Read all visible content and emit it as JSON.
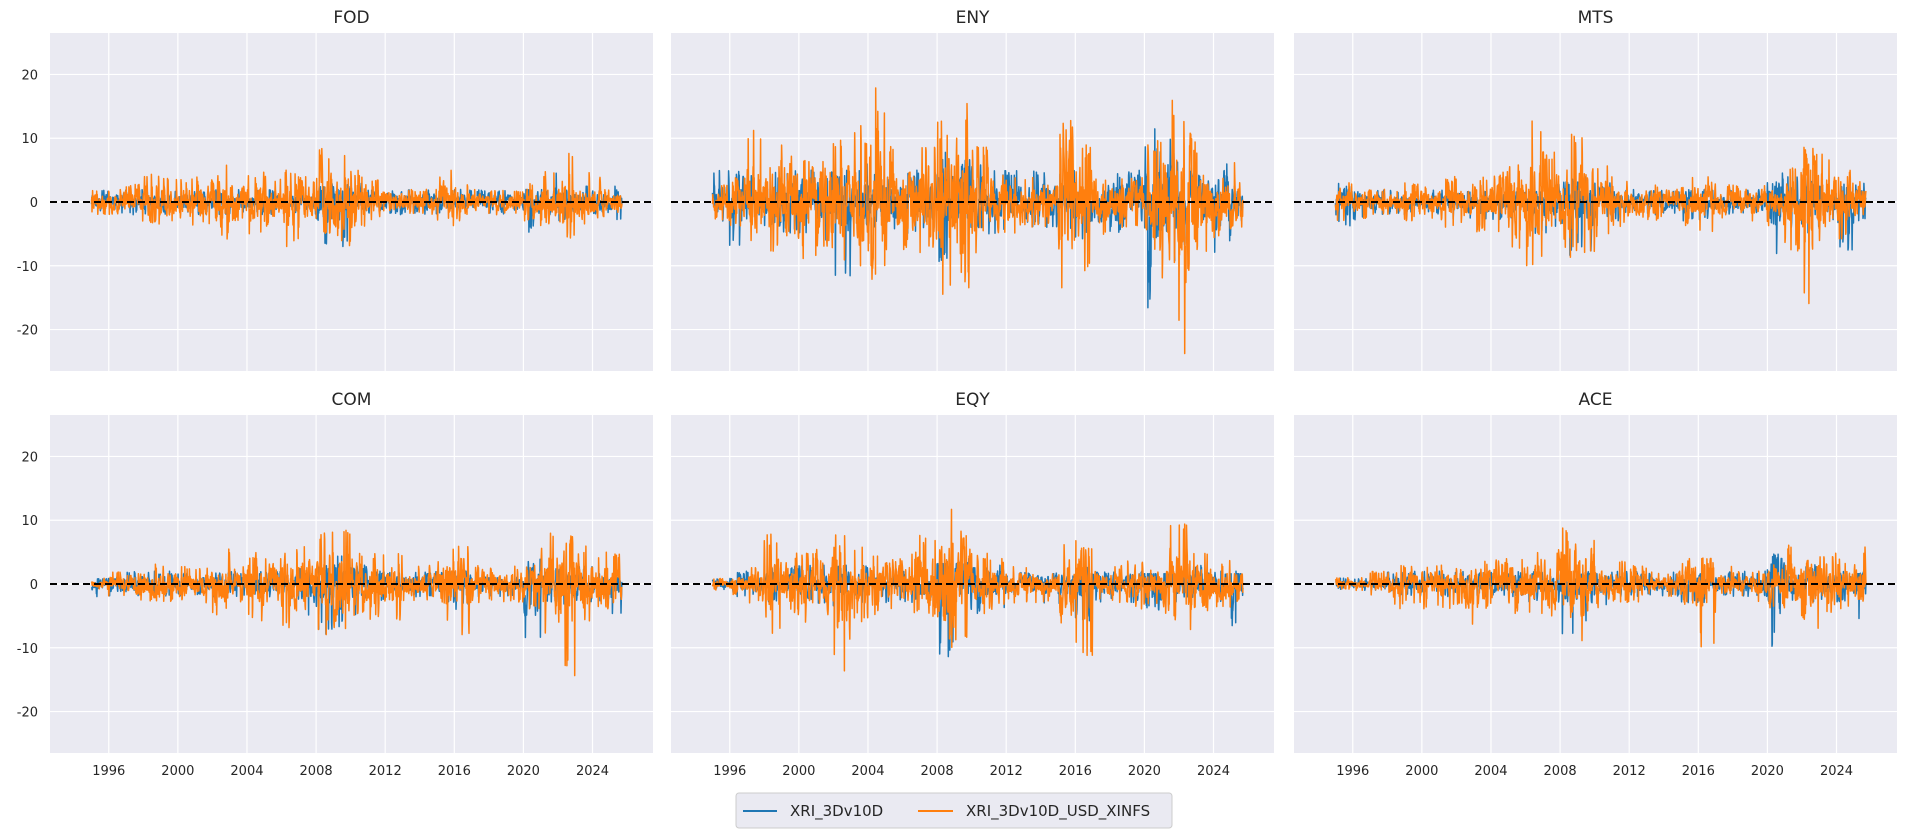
{
  "chart_data": {
    "type": "line",
    "layout": "2x3 small multiples, shared axes",
    "ylim": [
      -26.5,
      26.5
    ],
    "xlim": [
      1992.6,
      2027.5
    ],
    "yticks": [
      -20,
      -10,
      0,
      10,
      20
    ],
    "xticks": [
      1996,
      2000,
      2004,
      2008,
      2012,
      2016,
      2020,
      2024
    ],
    "grid": true,
    "background": "#eaeaf2",
    "reference_line": {
      "y": 0,
      "style": "dashed",
      "color": "#000000"
    },
    "legend": {
      "placement": "bottom-center",
      "entries": [
        "XRI_3Dv10D",
        "XRI_3Dv10D_USD_XINFS"
      ]
    },
    "series_colors": [
      "#1f77b4",
      "#ff7f0e"
    ],
    "x_years": [
      1995,
      1996,
      1997,
      1998,
      1999,
      2000,
      2001,
      2002,
      2003,
      2004,
      2005,
      2006,
      2007,
      2008,
      2009,
      2010,
      2011,
      2012,
      2013,
      2014,
      2015,
      2016,
      2017,
      2018,
      2019,
      2020,
      2021,
      2022,
      2023,
      2024,
      2025
    ],
    "note_on_values": "annual max / min of each daily series, read from the plot",
    "panels": [
      {
        "title": "FOD",
        "series": [
          {
            "name": "XRI_3Dv10D",
            "max": [
              2,
              2,
              2,
              2,
              2,
              2,
              2,
              2,
              2,
              2,
              2,
              2,
              2,
              3,
              3,
              3,
              2,
              2,
              2,
              2,
              2,
              2,
              2,
              2,
              2,
              2,
              5,
              2,
              3,
              3,
              3
            ],
            "min": [
              -2,
              -2,
              -2,
              -2,
              -2,
              -2,
              -2,
              -2,
              -2,
              -2,
              -2,
              -2,
              -2,
              -7,
              -7,
              -3,
              -2,
              -2,
              -2,
              -2,
              -2,
              -2,
              -2,
              -2,
              -2,
              -5,
              -2,
              -3,
              -2,
              -2,
              -3
            ]
          },
          {
            "name": "XRI_3Dv10D_USD_XINFS",
            "max": [
              2,
              2,
              3,
              5,
              4,
              4,
              4,
              7,
              3,
              5,
              4,
              5,
              4,
              9,
              9,
              5,
              4,
              3,
              2,
              2,
              5,
              3,
              2,
              2,
              2,
              3,
              5,
              8,
              5,
              4,
              3
            ],
            "min": [
              -2,
              -2,
              -3,
              -4,
              -3,
              -4,
              -4,
              -6,
              -3,
              -5,
              -4,
              -7,
              -4,
              -6,
              -7,
              -4,
              -3,
              -2,
              -2,
              -2,
              -4,
              -3,
              -2,
              -2,
              -2,
              -3,
              -4,
              -6,
              -4,
              -3,
              -2
            ]
          }
        ]
      },
      {
        "title": "ENY",
        "series": [
          {
            "name": "XRI_3Dv10D",
            "max": [
              5,
              5,
              5,
              5,
              5,
              5,
              5,
              5,
              6,
              5,
              5,
              5,
              5,
              8,
              7,
              6,
              5,
              5,
              5,
              5,
              5,
              5,
              5,
              5,
              5,
              12,
              10,
              6,
              5,
              7,
              6
            ],
            "min": [
              -3,
              -7,
              -3,
              -4,
              -5,
              -5,
              -7,
              -12,
              -4,
              -4,
              -5,
              -5,
              -5,
              -10,
              -8,
              -5,
              -5,
              -4,
              -4,
              -4,
              -5,
              -6,
              -4,
              -5,
              -4,
              -18,
              -10,
              -8,
              -5,
              -8,
              -4
            ]
          },
          {
            "name": "XRI_3Dv10D_USD_XINFS",
            "max": [
              3,
              4,
              12,
              7,
              9,
              8,
              11,
              10,
              12,
              18,
              10,
              10,
              10,
              13,
              16,
              9,
              6,
              5,
              4,
              3,
              13,
              9,
              4,
              4,
              4,
              10,
              16,
              14,
              9,
              8,
              7
            ],
            "min": [
              -3,
              -4,
              -8,
              -8,
              -11,
              -9,
              -13,
              -10,
              -11,
              -13,
              -8,
              -9,
              -8,
              -15,
              -14,
              -8,
              -6,
              -5,
              -4,
              -4,
              -14,
              -12,
              -6,
              -4,
              -4,
              -8,
              -12,
              -24,
              -8,
              -6,
              -5
            ]
          }
        ]
      },
      {
        "title": "MTS",
        "series": [
          {
            "name": "XRI_3Dv10D",
            "max": [
              3,
              2,
              2,
              2,
              2,
              2,
              2,
              2,
              2,
              2,
              2,
              2,
              3,
              4,
              4,
              3,
              2,
              2,
              2,
              2,
              2,
              2,
              2,
              2,
              2,
              5,
              4,
              4,
              3,
              3,
              3
            ],
            "min": [
              -4,
              -3,
              -2,
              -2,
              -2,
              -2,
              -3,
              -3,
              -3,
              -3,
              -3,
              -5,
              -5,
              -9,
              -8,
              -5,
              -3,
              -2,
              -2,
              -2,
              -3,
              -3,
              -2,
              -2,
              -2,
              -10,
              -4,
              -5,
              -3,
              -8,
              -3
            ]
          },
          {
            "name": "XRI_3Dv10D_USD_XINFS",
            "max": [
              3,
              2,
              2,
              2,
              3,
              3,
              4,
              3,
              4,
              5,
              6,
              13,
              8,
              11,
              11,
              6,
              4,
              3,
              3,
              2,
              4,
              4,
              3,
              3,
              3,
              3,
              6,
              9,
              8,
              5,
              4
            ],
            "min": [
              -3,
              -3,
              -2,
              -2,
              -3,
              -3,
              -4,
              -4,
              -5,
              -6,
              -9,
              -10,
              -8,
              -9,
              -8,
              -6,
              -4,
              -3,
              -3,
              -2,
              -4,
              -5,
              -3,
              -3,
              -3,
              -4,
              -8,
              -17,
              -8,
              -6,
              -4
            ]
          }
        ]
      },
      {
        "title": "COM",
        "series": [
          {
            "name": "XRI_3Dv10D",
            "max": [
              1,
              2,
              2,
              2,
              2,
              2,
              2,
              2,
              2,
              2,
              2,
              2,
              3,
              3,
              5,
              3,
              2,
              2,
              2,
              2,
              2,
              2,
              2,
              2,
              2,
              4,
              3,
              3,
              3,
              2,
              2
            ],
            "min": [
              -2,
              -2,
              -2,
              -2,
              -2,
              -2,
              -2,
              -2,
              -2,
              -2,
              -2,
              -3,
              -5,
              -8,
              -7,
              -5,
              -3,
              -2,
              -2,
              -2,
              -3,
              -4,
              -2,
              -2,
              -2,
              -11,
              -3,
              -4,
              -3,
              -3,
              -6
            ]
          },
          {
            "name": "XRI_3Dv10D_USD_XINFS",
            "max": [
              1,
              2,
              2,
              4,
              3,
              3,
              3,
              6,
              3,
              5,
              4,
              6,
              6,
              9,
              10,
              5,
              5,
              5,
              3,
              3,
              6,
              6,
              3,
              3,
              3,
              3,
              8,
              8,
              6,
              5,
              5
            ],
            "min": [
              -1,
              -2,
              -3,
              -3,
              -3,
              -3,
              -3,
              -5,
              -3,
              -6,
              -5,
              -7,
              -6,
              -8,
              -8,
              -5,
              -6,
              -6,
              -3,
              -3,
              -7,
              -8,
              -3,
              -3,
              -3,
              -4,
              -8,
              -15,
              -6,
              -4,
              -3
            ]
          }
        ]
      },
      {
        "title": "EQY",
        "series": [
          {
            "name": "XRI_3Dv10D",
            "max": [
              1,
              2,
              2,
              3,
              3,
              3,
              3,
              3,
              3,
              2,
              2,
              2,
              3,
              4,
              4,
              4,
              3,
              2,
              2,
              2,
              3,
              3,
              2,
              2,
              2,
              2,
              2,
              3,
              3,
              2,
              2
            ],
            "min": [
              -1,
              -2,
              -2,
              -3,
              -3,
              -3,
              -3,
              -4,
              -3,
              -2,
              -3,
              -3,
              -3,
              -12,
              -8,
              -5,
              -4,
              -2,
              -2,
              -3,
              -4,
              -6,
              -3,
              -3,
              -3,
              -12,
              -3,
              -4,
              -3,
              -3,
              -7
            ]
          },
          {
            "name": "XRI_3Dv10D_USD_XINFS",
            "max": [
              1,
              2,
              3,
              8,
              5,
              5,
              6,
              10,
              6,
              5,
              4,
              5,
              8,
              13,
              9,
              5,
              4,
              3,
              3,
              3,
              7,
              7,
              3,
              3,
              4,
              4,
              10,
              10,
              6,
              4,
              3
            ],
            "min": [
              -1,
              -2,
              -3,
              -8,
              -5,
              -6,
              -6,
              -14,
              -6,
              -5,
              -4,
              -5,
              -6,
              -10,
              -9,
              -5,
              -4,
              -3,
              -3,
              -3,
              -8,
              -12,
              -3,
              -3,
              -4,
              -4,
              -6,
              -8,
              -5,
              -4,
              -3
            ]
          }
        ]
      },
      {
        "title": "ACE",
        "series": [
          {
            "name": "XRI_3Dv10D",
            "max": [
              1,
              1,
              1,
              2,
              2,
              2,
              2,
              2,
              2,
              2,
              2,
              2,
              2,
              2,
              2,
              2,
              2,
              2,
              2,
              2,
              2,
              2,
              2,
              2,
              2,
              5,
              3,
              3,
              2,
              2,
              2
            ],
            "min": [
              -1,
              -1,
              -1,
              -2,
              -2,
              -2,
              -2,
              -2,
              -2,
              -2,
              -2,
              -3,
              -3,
              -9,
              -7,
              -4,
              -2,
              -2,
              -2,
              -2,
              -3,
              -3,
              -2,
              -2,
              -2,
              -10,
              -3,
              -3,
              -3,
              -3,
              -7
            ]
          },
          {
            "name": "XRI_3Dv10D_USD_XINFS",
            "max": [
              1,
              1,
              2,
              3,
              3,
              3,
              3,
              3,
              4,
              4,
              4,
              5,
              6,
              10,
              8,
              4,
              4,
              3,
              2,
              2,
              5,
              5,
              3,
              2,
              2,
              3,
              7,
              8,
              5,
              4,
              6
            ],
            "min": [
              -1,
              -1,
              -2,
              -4,
              -3,
              -4,
              -4,
              -8,
              -4,
              -4,
              -5,
              -5,
              -6,
              -9,
              -9,
              -4,
              -3,
              -3,
              -2,
              -2,
              -7,
              -10,
              -2,
              -2,
              -3,
              -4,
              -6,
              -7,
              -5,
              -4,
              -3
            ]
          }
        ]
      }
    ]
  }
}
